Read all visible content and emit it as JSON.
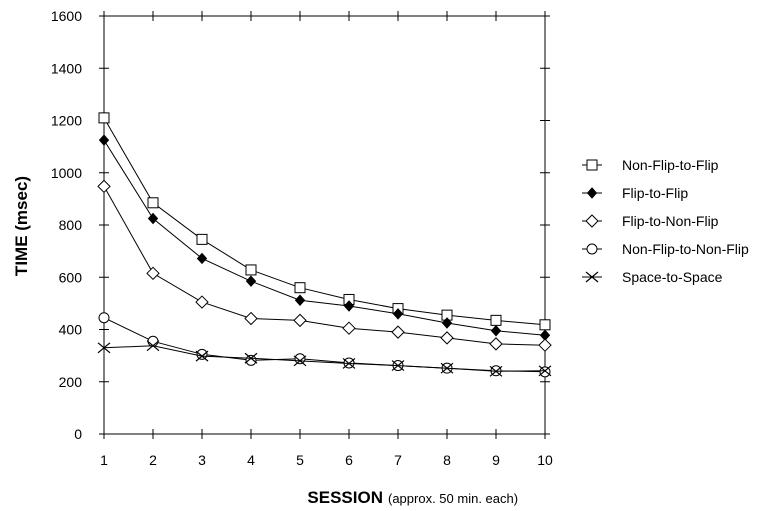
{
  "chart_data": {
    "type": "line",
    "title": "",
    "xlabel": "SESSION",
    "xlabel_note": "(approx. 50 min. each)",
    "ylabel": "TIME (msec)",
    "x": [
      1,
      2,
      3,
      4,
      5,
      6,
      7,
      8,
      9,
      10
    ],
    "xlim": [
      1,
      10
    ],
    "ylim": [
      0,
      1600
    ],
    "yticks": [
      0,
      200,
      400,
      600,
      800,
      1000,
      1200,
      1400,
      1600
    ],
    "xticks": [
      1,
      2,
      3,
      4,
      5,
      6,
      7,
      8,
      9,
      10
    ],
    "grid": false,
    "legend_position": "right",
    "series": [
      {
        "name": "Non-Flip-to-Flip",
        "marker": "open-square",
        "values": [
          1210,
          885,
          745,
          628,
          560,
          515,
          480,
          455,
          435,
          418
        ]
      },
      {
        "name": "Flip-to-Flip",
        "marker": "filled-diamond",
        "values": [
          1125,
          825,
          672,
          585,
          512,
          490,
          460,
          425,
          395,
          378
        ]
      },
      {
        "name": "Flip-to-Non-Flip",
        "marker": "open-diamond",
        "values": [
          948,
          615,
          505,
          442,
          435,
          405,
          390,
          368,
          345,
          340
        ]
      },
      {
        "name": "Non-Flip-to-Non-Flip",
        "marker": "open-circle",
        "values": [
          445,
          355,
          305,
          282,
          288,
          272,
          262,
          252,
          242,
          238
        ]
      },
      {
        "name": "Space-to-Space",
        "marker": "x-cross",
        "values": [
          330,
          338,
          298,
          290,
          280,
          270,
          262,
          252,
          240,
          242
        ]
      }
    ]
  }
}
